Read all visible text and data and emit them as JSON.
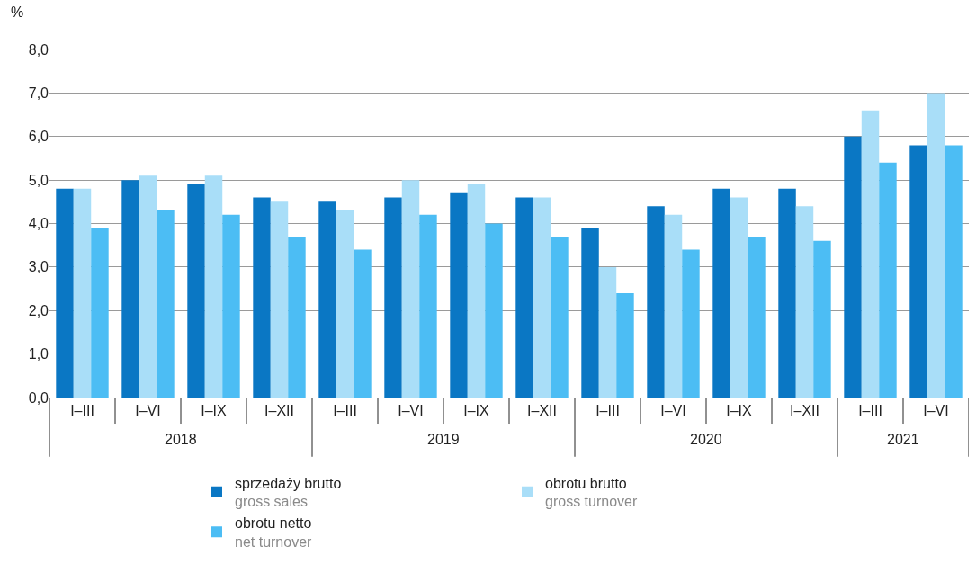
{
  "chart_data": {
    "type": "bar",
    "ylabel": "%",
    "categories": [
      "I–III",
      "I–VI",
      "I–IX",
      "I–XII",
      "I–III",
      "I–VI",
      "I–IX",
      "I–XII",
      "I–III",
      "I–VI",
      "I–IX",
      "I–XII",
      "I–III",
      "I–VI"
    ],
    "annotations": [
      "2018",
      "2019",
      "2020",
      "2021"
    ],
    "series": [
      {
        "name": "sprzedaży brutto\ngross sales",
        "color": "#0a77c4",
        "values": [
          4.8,
          5.0,
          4.9,
          4.6,
          4.5,
          4.6,
          4.7,
          4.6,
          3.9,
          4.4,
          4.8,
          4.8,
          6.0,
          5.8
        ]
      },
      {
        "name": "obrotu brutto\ngross turnover",
        "color": "#a9def8",
        "values": [
          4.8,
          5.1,
          5.1,
          4.5,
          4.3,
          5.0,
          4.9,
          4.6,
          3.0,
          4.2,
          4.6,
          4.4,
          6.6,
          7.0
        ]
      },
      {
        "name": "obrotu netto\nnet turnover",
        "color": "#4cbdf4",
        "values": [
          3.9,
          4.3,
          4.2,
          3.7,
          3.4,
          4.2,
          4.0,
          3.7,
          2.4,
          3.4,
          3.7,
          3.6,
          5.4,
          5.8
        ]
      }
    ],
    "ylim": [
      0,
      8
    ],
    "yticks": [
      {
        "value": 0,
        "label": "0,0"
      },
      {
        "value": 1,
        "label": "1,0"
      },
      {
        "value": 2,
        "label": "2,0"
      },
      {
        "value": 3,
        "label": "3,0"
      },
      {
        "value": 4,
        "label": "4,0"
      },
      {
        "value": 5,
        "label": "5,0"
      },
      {
        "value": 6,
        "label": "6,0"
      },
      {
        "value": 7,
        "label": "7,0"
      },
      {
        "value": 8,
        "label": "8,0"
      }
    ],
    "grid": "y",
    "legend": "bottom"
  }
}
